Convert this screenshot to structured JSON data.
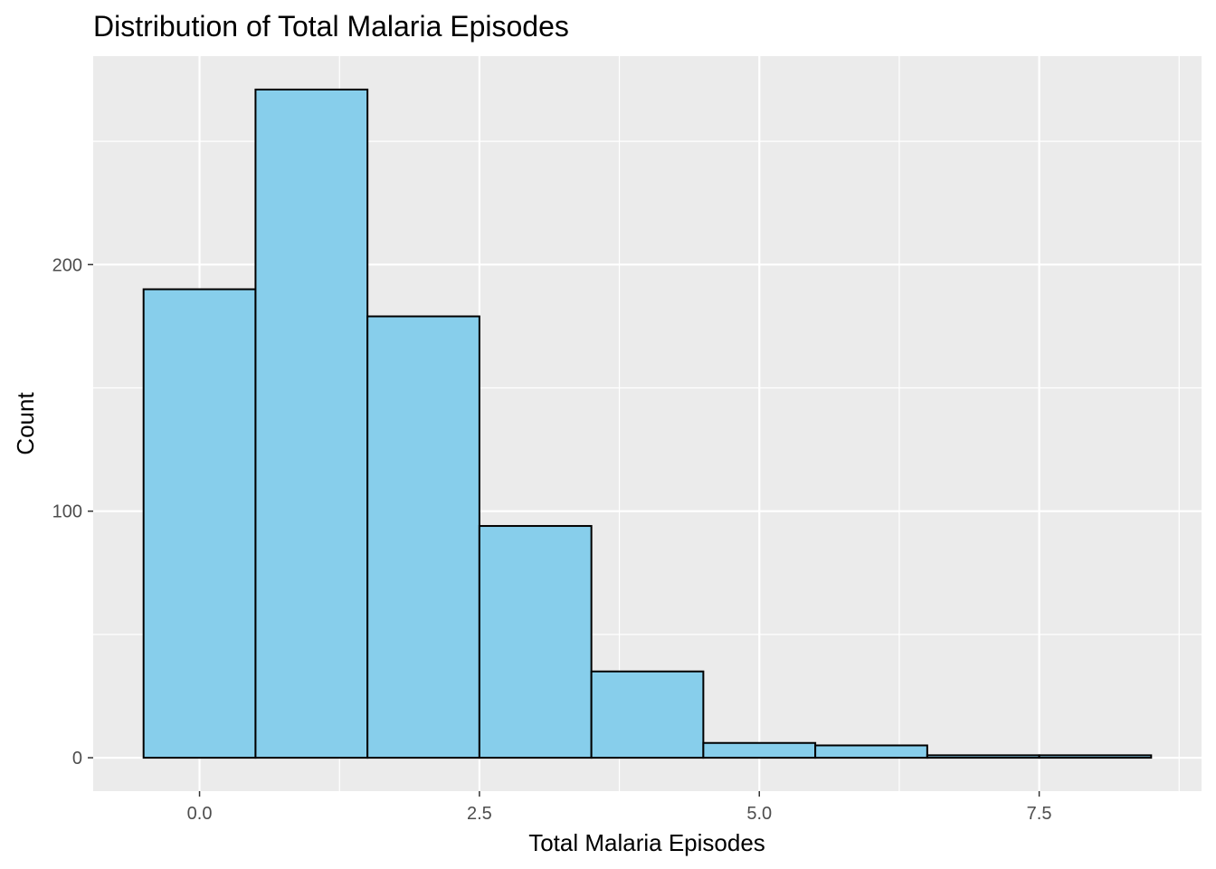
{
  "chart_data": {
    "type": "bar",
    "title": "Distribution of Total Malaria Episodes",
    "xlabel": "Total Malaria Episodes",
    "ylabel": "Count",
    "bin_width": 1,
    "bins": [
      {
        "x_start": -0.5,
        "x_end": 0.5,
        "count": 190
      },
      {
        "x_start": 0.5,
        "x_end": 1.5,
        "count": 271
      },
      {
        "x_start": 1.5,
        "x_end": 2.5,
        "count": 179
      },
      {
        "x_start": 2.5,
        "x_end": 3.5,
        "count": 94
      },
      {
        "x_start": 3.5,
        "x_end": 4.5,
        "count": 35
      },
      {
        "x_start": 4.5,
        "x_end": 5.5,
        "count": 6
      },
      {
        "x_start": 5.5,
        "x_end": 6.5,
        "count": 5
      },
      {
        "x_start": 6.5,
        "x_end": 7.5,
        "count": 1
      },
      {
        "x_start": 7.5,
        "x_end": 8.5,
        "count": 1
      }
    ],
    "xlim": [
      -0.95,
      8.95
    ],
    "ylim": [
      -13.55,
      284.55
    ],
    "x_ticks": [
      0.0,
      2.5,
      5.0,
      7.5
    ],
    "x_tick_labels": [
      "0.0",
      "2.5",
      "5.0",
      "7.5"
    ],
    "y_ticks": [
      0,
      100,
      200
    ],
    "y_tick_labels": [
      "0",
      "100",
      "200"
    ],
    "x_minor_ticks": [
      1.25,
      3.75,
      6.25,
      8.75
    ],
    "y_minor_ticks": [
      50,
      150,
      250
    ],
    "grid": true,
    "legend": "none",
    "colors": {
      "bar_fill": "#87CEEB",
      "bar_stroke": "#000000",
      "panel_background": "#EBEBEB",
      "grid_line": "#FFFFFF"
    }
  }
}
